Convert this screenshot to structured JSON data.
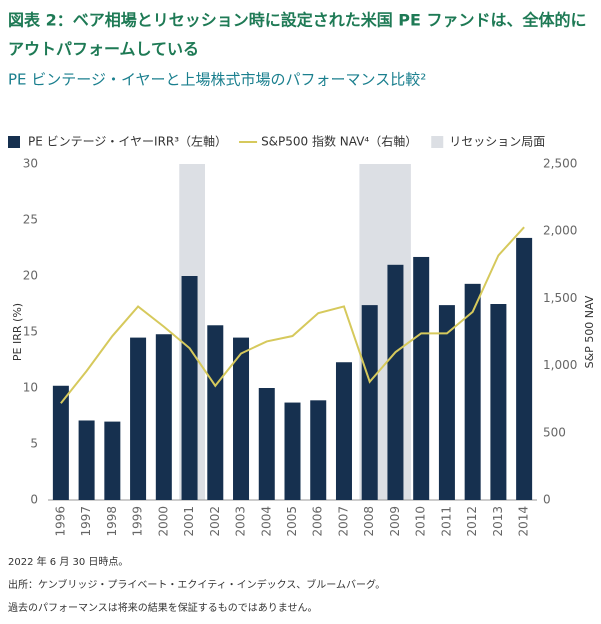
{
  "chart_data": {
    "type": "bar_line",
    "title": "図表 2：ベア相場とリセッション時に設定された米国 PE ファンドは、全体的に",
    "title_line2": "アウトパフォームしている",
    "subtitle": "PE ビンテージ・イヤーと上場株式市場のパフォーマンス比較²",
    "categories": [
      "1996",
      "1997",
      "1998",
      "1999",
      "2000",
      "2001",
      "2002",
      "2003",
      "2004",
      "2005",
      "2006",
      "2007",
      "2008",
      "2009",
      "2010",
      "2011",
      "2012",
      "2013",
      "2014"
    ],
    "series": [
      {
        "name": "PE ビンテージ・イヤーIRR³（左軸）",
        "color": "#16304f",
        "kind": "bar",
        "values": [
          10.2,
          7.1,
          7.0,
          14.5,
          14.8,
          20.0,
          15.6,
          14.5,
          10.0,
          8.7,
          8.9,
          12.3,
          17.4,
          21.0,
          21.7,
          17.4,
          19.3,
          17.5,
          23.4
        ]
      },
      {
        "name": "S&P500 指数 NAV⁴（右軸）",
        "color": "#d6c95c",
        "kind": "line",
        "axis": "y2",
        "values": [
          720,
          960,
          1220,
          1440,
          1290,
          1130,
          850,
          1090,
          1180,
          1220,
          1390,
          1440,
          880,
          1100,
          1240,
          1240,
          1400,
          1820,
          2030
        ]
      }
    ],
    "recession_name": "リセッション局面",
    "recession_color": "#dcdfe4",
    "recessions": [
      [
        "2001",
        "2001"
      ],
      [
        "2008",
        "2009"
      ]
    ],
    "ylabel": "PE IRR (%)",
    "y2label": "S&P 500 NAV",
    "ylim": [
      0,
      30
    ],
    "yticks": [
      0,
      5,
      10,
      15,
      20,
      25,
      30
    ],
    "y2lim": [
      0,
      2500
    ],
    "y2ticks": [
      0,
      500,
      {
        "value": 1000,
        "label": "1,000"
      },
      {
        "value": 1500,
        "label": "1,500"
      },
      {
        "value": 2000,
        "label": "2,000"
      },
      {
        "value": 2500,
        "label": "2,500"
      }
    ],
    "footnotes": [
      "2022 年 6 月 30 日時点。",
      "出所：ケンブリッジ・プライベート・エクイティ・インデックス、ブルームバーグ。",
      "過去のパフォーマンスは将来の結果を保証するものではありません。"
    ]
  }
}
